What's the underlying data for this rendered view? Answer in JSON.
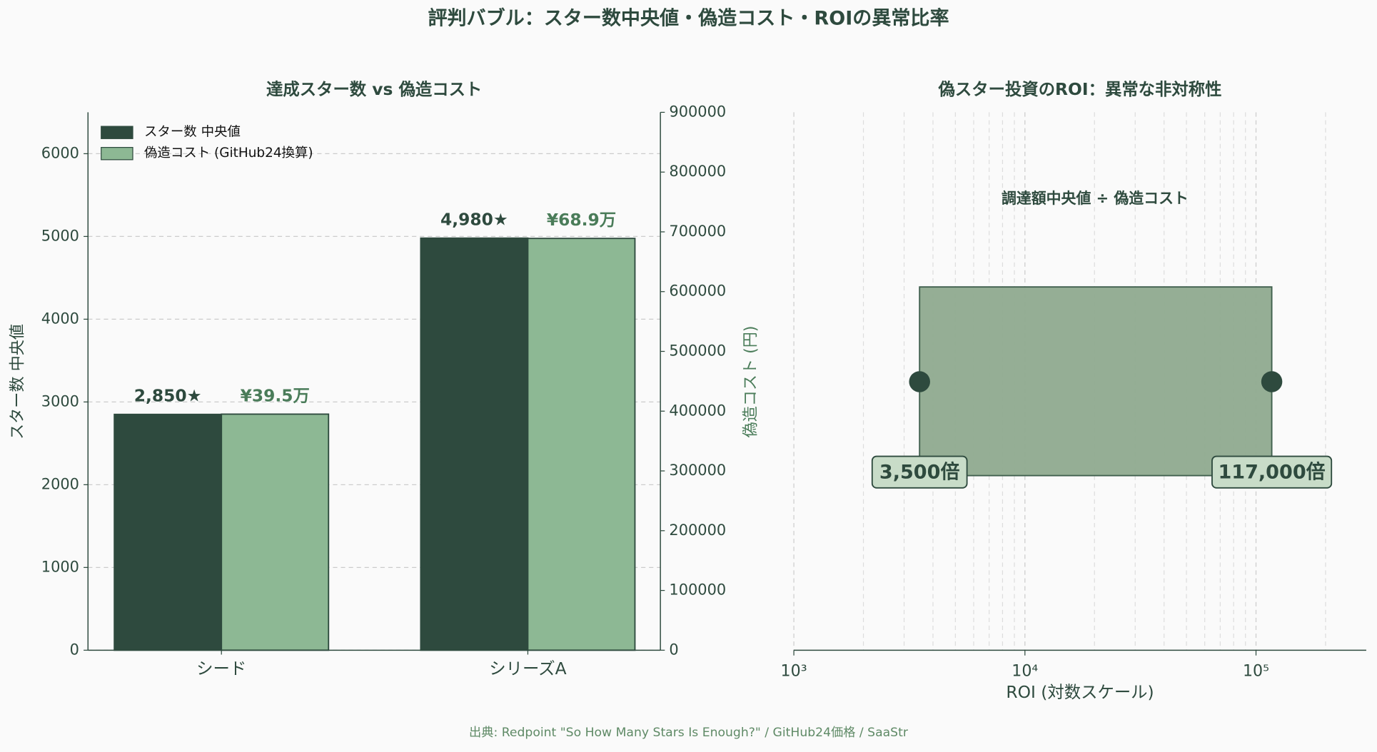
{
  "title": "評判バブル：スター数中央値・偽造コスト・ROIの異常比率",
  "source": "出典: Redpoint \"So How Many Stars Is Enough?\" / GitHub24価格 / SaaStr",
  "chart_data": [
    {
      "type": "bar",
      "title": "達成スター数 vs 偽造コスト",
      "categories": [
        "シード",
        "シリーズA"
      ],
      "series": [
        {
          "name": "スター数 中央値",
          "color": "#2e4a3e",
          "values": [
            2850,
            4980
          ],
          "value_labels": [
            "2,850★",
            "4,980★"
          ]
        },
        {
          "name": "偽造コスト (GitHub24換算)",
          "color": "#8db894",
          "axis": "y2",
          "values": [
            395000,
            689000
          ],
          "value_labels": [
            "¥39.5万",
            "¥68.9万"
          ]
        }
      ],
      "ylabel": "スター数 中央値",
      "y2label": "偽造コスト (円)",
      "ylim": [
        0,
        6500
      ],
      "yticks": [
        0,
        1000,
        2000,
        3000,
        4000,
        5000,
        6000
      ],
      "y2lim": [
        0,
        900000
      ],
      "y2ticks": [
        0,
        100000,
        200000,
        300000,
        400000,
        500000,
        600000,
        700000,
        800000,
        900000
      ],
      "grid": true,
      "legend": "upper left"
    },
    {
      "type": "range",
      "title": "偽スター投資のROI：異常な非対称性",
      "annotation": "調達額中央値 ÷ 偽造コスト",
      "values": [
        3500,
        117000
      ],
      "value_labels": [
        "3,500倍",
        "117,000倍"
      ],
      "color": "#8faa8f",
      "xlabel": "ROI (対数スケール)",
      "xscale": "log",
      "xlim": [
        1000,
        300000
      ],
      "xticks": [
        {
          "value": 1000,
          "label": "10³"
        },
        {
          "value": 10000,
          "label": "10⁴"
        },
        {
          "value": 100000,
          "label": "10⁵"
        }
      ],
      "grid": true
    }
  ]
}
